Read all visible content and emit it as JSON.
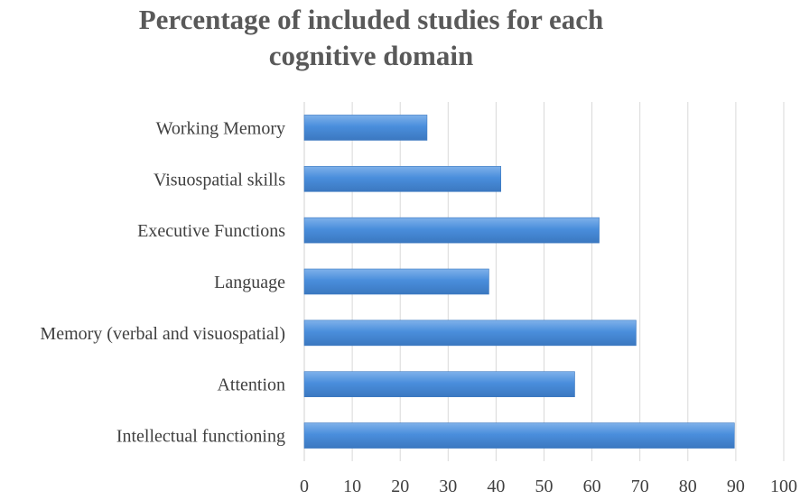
{
  "title_lines": [
    "Percentage of included studies for each",
    "cognitive domain"
  ],
  "chart_data": {
    "type": "bar",
    "orientation": "horizontal",
    "title": "Percentage of included studies for each cognitive domain",
    "categories": [
      "Working Memory",
      "Visuospatial skills",
      "Executive Functions",
      "Language",
      "Memory (verbal and visuospatial)",
      "Attention",
      "Intellectual functioning"
    ],
    "values": [
      25.6,
      41,
      61.5,
      38.5,
      69.2,
      56.4,
      89.7
    ],
    "xlim": [
      0,
      100
    ],
    "xticks": [
      0,
      10,
      20,
      30,
      40,
      50,
      60,
      70,
      80,
      90,
      100
    ],
    "xlabel": "",
    "ylabel": "",
    "grid": "vertical",
    "legend": "none",
    "bar_color": "#4a8edc",
    "bar_gradient_light": "#7fb1ea",
    "bar_edge": "#3b78c0",
    "grid_color": "#d9d9d9",
    "text_color": "#404040",
    "title_color": "#595959"
  }
}
